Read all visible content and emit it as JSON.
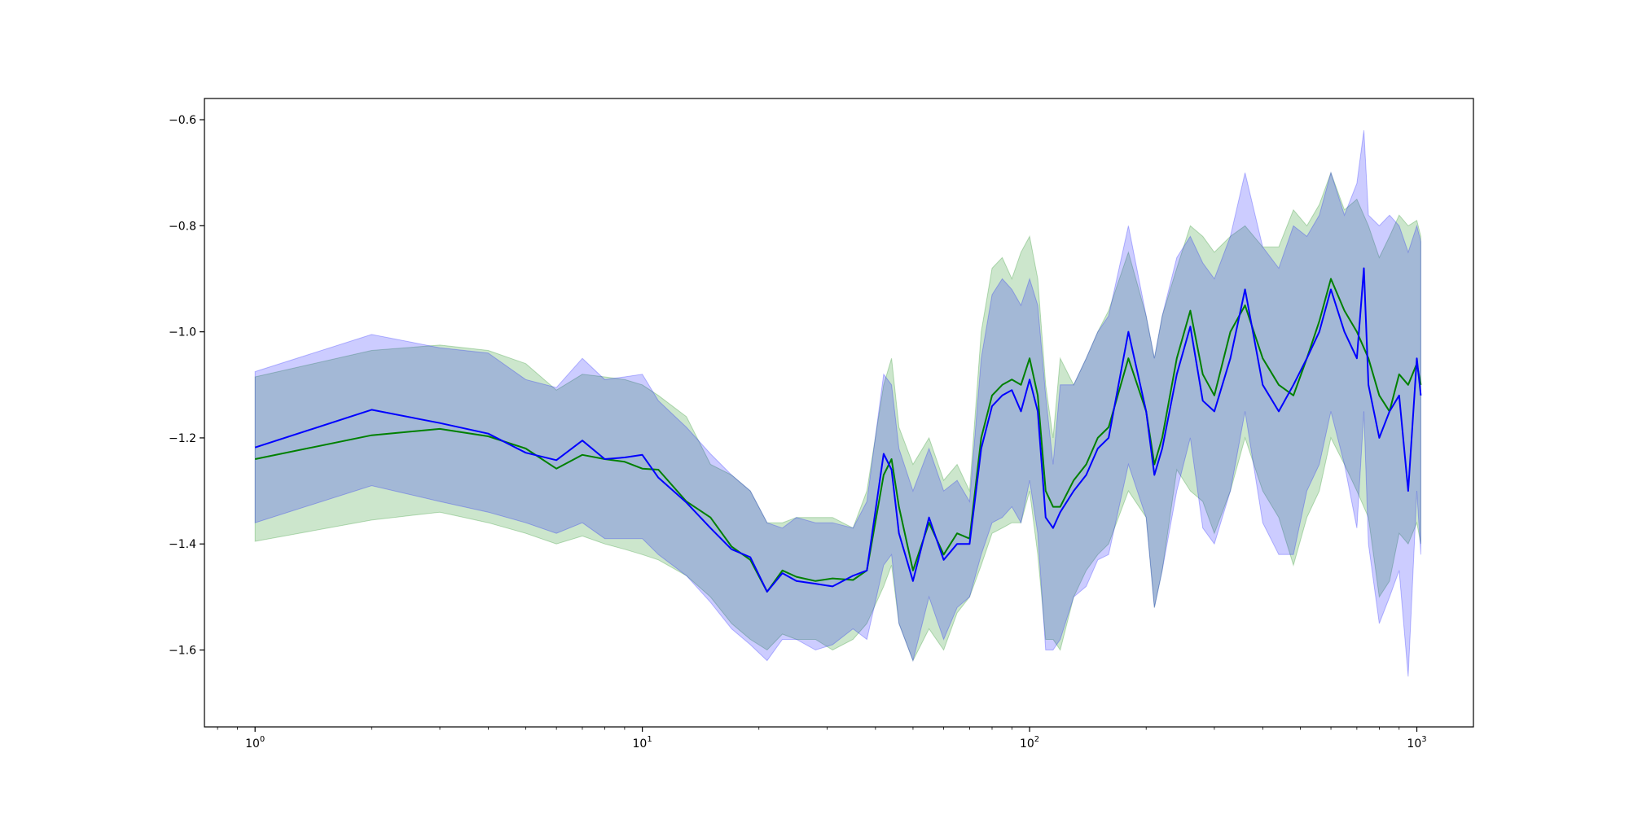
{
  "chart_data": {
    "type": "line",
    "title": "",
    "xlabel": "",
    "ylabel": "",
    "x_scale": "log",
    "xlim": [
      0.74,
      1400
    ],
    "ylim": [
      -1.745,
      -0.56
    ],
    "grid": false,
    "legend": "none",
    "x_ticks": [
      {
        "value": 1,
        "base": "10",
        "exp": "0"
      },
      {
        "value": 10,
        "base": "10",
        "exp": "1"
      },
      {
        "value": 100,
        "base": "10",
        "exp": "2"
      },
      {
        "value": 1000,
        "base": "10",
        "exp": "3"
      }
    ],
    "y_ticks": [
      {
        "value": -0.6,
        "label": "−0.6"
      },
      {
        "value": -0.8,
        "label": "−0.8"
      },
      {
        "value": -1.0,
        "label": "−1.0"
      },
      {
        "value": -1.2,
        "label": "−1.2"
      },
      {
        "value": -1.4,
        "label": "−1.4"
      },
      {
        "value": -1.6,
        "label": "−1.6"
      }
    ],
    "series": [
      {
        "color": "#008000",
        "band_color": "#008000",
        "band_opacity": 0.2,
        "x": [
          1,
          2,
          3,
          4,
          5,
          6,
          7,
          8,
          9,
          10,
          11,
          13,
          15,
          17,
          19,
          21,
          23,
          25,
          28,
          31,
          35,
          38,
          42,
          44,
          46,
          50,
          55,
          60,
          65,
          70,
          75,
          80,
          85,
          90,
          95,
          100,
          105,
          110,
          115,
          120,
          130,
          140,
          150,
          160,
          180,
          200,
          210,
          220,
          240,
          260,
          280,
          300,
          330,
          360,
          400,
          440,
          480,
          520,
          560,
          600,
          650,
          700,
          750,
          800,
          850,
          900,
          950,
          1000,
          1024
        ],
        "y": [
          -1.24,
          -1.195,
          -1.183,
          -1.197,
          -1.22,
          -1.258,
          -1.232,
          -1.24,
          -1.245,
          -1.258,
          -1.26,
          -1.32,
          -1.35,
          -1.405,
          -1.43,
          -1.49,
          -1.45,
          -1.462,
          -1.47,
          -1.465,
          -1.468,
          -1.45,
          -1.27,
          -1.24,
          -1.33,
          -1.45,
          -1.36,
          -1.42,
          -1.38,
          -1.39,
          -1.2,
          -1.12,
          -1.1,
          -1.09,
          -1.1,
          -1.05,
          -1.12,
          -1.3,
          -1.33,
          -1.33,
          -1.28,
          -1.25,
          -1.2,
          -1.18,
          -1.05,
          -1.15,
          -1.25,
          -1.2,
          -1.05,
          -0.96,
          -1.08,
          -1.12,
          -1.0,
          -0.95,
          -1.05,
          -1.1,
          -1.12,
          -1.05,
          -0.98,
          -0.9,
          -0.96,
          -1.0,
          -1.05,
          -1.12,
          -1.15,
          -1.08,
          -1.1,
          -1.06,
          -1.1
        ],
        "upper": [
          -1.085,
          -1.035,
          -1.025,
          -1.035,
          -1.06,
          -1.11,
          -1.08,
          -1.085,
          -1.09,
          -1.1,
          -1.12,
          -1.16,
          -1.25,
          -1.27,
          -1.3,
          -1.36,
          -1.36,
          -1.35,
          -1.35,
          -1.35,
          -1.37,
          -1.3,
          -1.1,
          -1.05,
          -1.18,
          -1.25,
          -1.2,
          -1.28,
          -1.25,
          -1.3,
          -1.0,
          -0.88,
          -0.86,
          -0.9,
          -0.85,
          -0.82,
          -0.9,
          -1.1,
          -1.2,
          -1.05,
          -1.1,
          -1.05,
          -1.0,
          -0.96,
          -0.85,
          -0.97,
          -1.05,
          -0.97,
          -0.88,
          -0.8,
          -0.82,
          -0.85,
          -0.82,
          -0.8,
          -0.84,
          -0.84,
          -0.77,
          -0.8,
          -0.76,
          -0.7,
          -0.77,
          -0.75,
          -0.8,
          -0.86,
          -0.82,
          -0.78,
          -0.8,
          -0.79,
          -0.82
        ],
        "lower": [
          -1.395,
          -1.355,
          -1.34,
          -1.36,
          -1.38,
          -1.4,
          -1.385,
          -1.4,
          -1.41,
          -1.42,
          -1.43,
          -1.46,
          -1.5,
          -1.55,
          -1.58,
          -1.6,
          -1.57,
          -1.58,
          -1.58,
          -1.6,
          -1.58,
          -1.55,
          -1.48,
          -1.44,
          -1.55,
          -1.62,
          -1.56,
          -1.6,
          -1.53,
          -1.5,
          -1.44,
          -1.38,
          -1.37,
          -1.36,
          -1.36,
          -1.3,
          -1.42,
          -1.58,
          -1.58,
          -1.6,
          -1.5,
          -1.45,
          -1.42,
          -1.4,
          -1.3,
          -1.35,
          -1.52,
          -1.45,
          -1.26,
          -1.3,
          -1.32,
          -1.38,
          -1.3,
          -1.2,
          -1.3,
          -1.35,
          -1.44,
          -1.35,
          -1.3,
          -1.2,
          -1.25,
          -1.3,
          -1.35,
          -1.5,
          -1.47,
          -1.38,
          -1.4,
          -1.36,
          -1.4
        ]
      },
      {
        "color": "#0000ff",
        "band_color": "#0000ff",
        "band_opacity": 0.2,
        "x": [
          1,
          2,
          3,
          4,
          5,
          6,
          7,
          8,
          9,
          10,
          11,
          13,
          15,
          17,
          19,
          21,
          23,
          25,
          28,
          31,
          35,
          38,
          42,
          44,
          46,
          50,
          55,
          60,
          65,
          70,
          75,
          80,
          85,
          90,
          95,
          100,
          105,
          110,
          115,
          120,
          130,
          140,
          150,
          160,
          180,
          200,
          210,
          220,
          240,
          260,
          280,
          300,
          330,
          360,
          400,
          440,
          480,
          520,
          560,
          600,
          650,
          700,
          730,
          750,
          800,
          850,
          900,
          950,
          1000,
          1024
        ],
        "y": [
          -1.218,
          -1.147,
          -1.172,
          -1.192,
          -1.228,
          -1.242,
          -1.205,
          -1.24,
          -1.237,
          -1.232,
          -1.275,
          -1.322,
          -1.37,
          -1.41,
          -1.425,
          -1.49,
          -1.455,
          -1.47,
          -1.475,
          -1.48,
          -1.46,
          -1.45,
          -1.23,
          -1.26,
          -1.38,
          -1.47,
          -1.35,
          -1.43,
          -1.4,
          -1.4,
          -1.22,
          -1.14,
          -1.12,
          -1.11,
          -1.15,
          -1.09,
          -1.15,
          -1.35,
          -1.37,
          -1.34,
          -1.3,
          -1.27,
          -1.22,
          -1.2,
          -1.0,
          -1.15,
          -1.27,
          -1.22,
          -1.08,
          -0.99,
          -1.13,
          -1.15,
          -1.05,
          -0.92,
          -1.1,
          -1.15,
          -1.1,
          -1.05,
          -1.0,
          -0.92,
          -1.0,
          -1.05,
          -0.88,
          -1.1,
          -1.2,
          -1.15,
          -1.12,
          -1.3,
          -1.05,
          -1.12
        ],
        "upper": [
          -1.075,
          -1.005,
          -1.03,
          -1.04,
          -1.09,
          -1.105,
          -1.05,
          -1.09,
          -1.085,
          -1.08,
          -1.13,
          -1.18,
          -1.23,
          -1.27,
          -1.3,
          -1.36,
          -1.37,
          -1.35,
          -1.36,
          -1.36,
          -1.37,
          -1.32,
          -1.08,
          -1.1,
          -1.22,
          -1.3,
          -1.22,
          -1.3,
          -1.28,
          -1.32,
          -1.05,
          -0.93,
          -0.9,
          -0.92,
          -0.95,
          -0.9,
          -0.95,
          -1.12,
          -1.25,
          -1.1,
          -1.1,
          -1.05,
          -1.0,
          -0.97,
          -0.8,
          -0.97,
          -1.05,
          -0.97,
          -0.86,
          -0.82,
          -0.87,
          -0.9,
          -0.82,
          -0.7,
          -0.84,
          -0.88,
          -0.8,
          -0.82,
          -0.78,
          -0.7,
          -0.78,
          -0.72,
          -0.62,
          -0.78,
          -0.8,
          -0.78,
          -0.8,
          -0.85,
          -0.8,
          -0.83
        ],
        "lower": [
          -1.36,
          -1.29,
          -1.32,
          -1.34,
          -1.36,
          -1.38,
          -1.36,
          -1.39,
          -1.39,
          -1.39,
          -1.42,
          -1.46,
          -1.51,
          -1.56,
          -1.59,
          -1.62,
          -1.58,
          -1.58,
          -1.6,
          -1.59,
          -1.56,
          -1.58,
          -1.44,
          -1.42,
          -1.55,
          -1.62,
          -1.5,
          -1.58,
          -1.52,
          -1.5,
          -1.42,
          -1.36,
          -1.35,
          -1.33,
          -1.36,
          -1.28,
          -1.38,
          -1.6,
          -1.6,
          -1.58,
          -1.5,
          -1.48,
          -1.43,
          -1.42,
          -1.25,
          -1.35,
          -1.52,
          -1.45,
          -1.3,
          -1.2,
          -1.37,
          -1.4,
          -1.3,
          -1.15,
          -1.36,
          -1.42,
          -1.42,
          -1.3,
          -1.25,
          -1.15,
          -1.25,
          -1.37,
          -1.15,
          -1.4,
          -1.55,
          -1.5,
          -1.45,
          -1.65,
          -1.3,
          -1.42
        ]
      }
    ]
  }
}
